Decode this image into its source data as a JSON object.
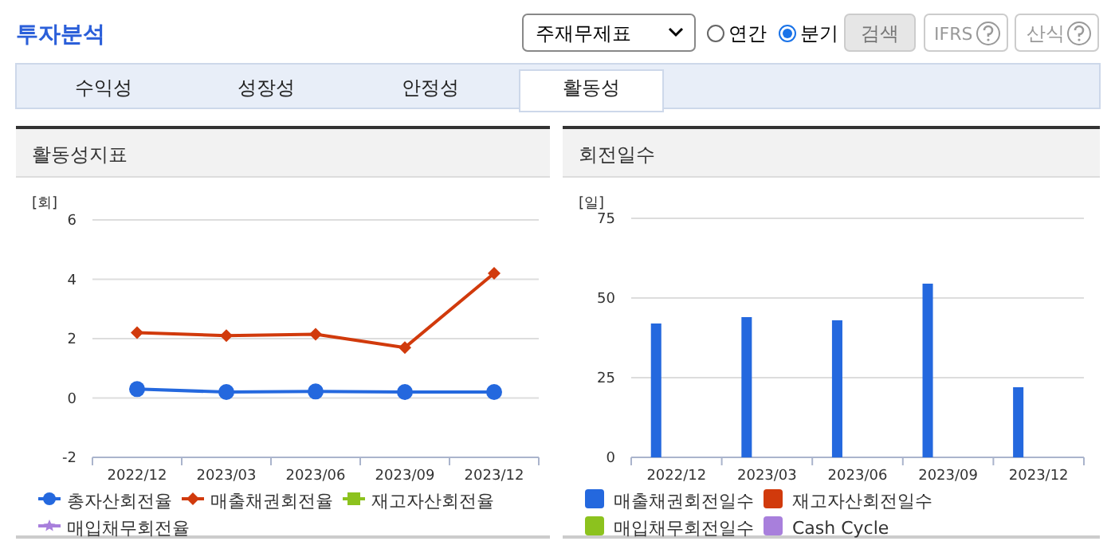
{
  "chart_data": [
    {
      "type": "line",
      "title": "활동성지표",
      "ylabel": "[회]",
      "categories": [
        "2022/12",
        "2023/03",
        "2023/06",
        "2023/09",
        "2023/12"
      ],
      "ylim": [
        -2,
        6
      ],
      "yticks": [
        -2,
        0,
        2,
        4,
        6
      ],
      "grid": "y",
      "legend": "bottom",
      "line_style": "solid",
      "annotations": [
        "투자분석",
        "주재무제표",
        "연간",
        "분기",
        "검색",
        "IFRS",
        "산식",
        "수익성",
        "성장성",
        "안정성",
        "활동성"
      ],
      "series": [
        {
          "name": "총자산회전율",
          "color": "#2468de",
          "marker": "circle",
          "values": [
            0.3,
            0.2,
            0.22,
            0.2,
            0.2
          ]
        },
        {
          "name": "매출채권회전율",
          "color": "#d13a0c",
          "marker": "diamond",
          "values": [
            2.2,
            2.1,
            2.15,
            1.7,
            4.2
          ]
        },
        {
          "name": "재고자산회전율",
          "color": "#8cc21e",
          "marker": "square",
          "values": [
            null,
            null,
            null,
            null,
            null
          ]
        },
        {
          "name": "매입채무회전율",
          "color": "#a87fdc",
          "marker": "star",
          "values": [
            null,
            null,
            null,
            null,
            null
          ]
        }
      ]
    },
    {
      "type": "bar",
      "title": "회전일수",
      "ylabel": "[일]",
      "categories": [
        "2022/12",
        "2023/03",
        "2023/06",
        "2023/09",
        "2023/12"
      ],
      "ylim": [
        0,
        75
      ],
      "yticks": [
        0,
        25,
        50,
        75
      ],
      "grid": "y",
      "legend": "bottom",
      "series": [
        {
          "name": "매출채권회전일수",
          "color": "#2468de",
          "values": [
            42,
            44,
            43,
            54.5,
            22
          ]
        },
        {
          "name": "재고자산회전일수",
          "color": "#d13a0c",
          "values": [
            null,
            null,
            null,
            null,
            null
          ]
        },
        {
          "name": "매입채무회전일수",
          "color": "#8cc21e",
          "values": [
            null,
            null,
            null,
            null,
            null
          ]
        },
        {
          "name": "Cash Cycle",
          "color": "#a87fdc",
          "values": [
            null,
            null,
            null,
            null,
            null
          ]
        }
      ]
    }
  ]
}
